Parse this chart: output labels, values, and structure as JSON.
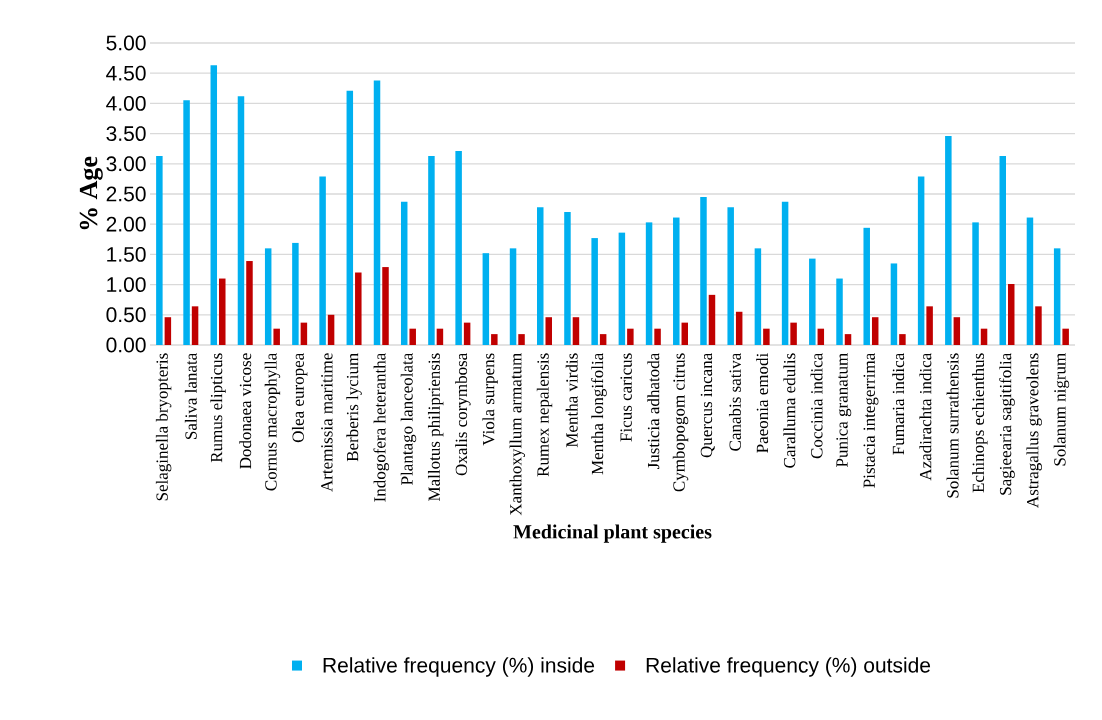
{
  "chart_data": {
    "type": "bar",
    "xlabel": "Medicinal plant species",
    "ylabel": "% Age",
    "categories": [
      "Selaginella bryopteris",
      "Saliva lanata",
      "Rumus elipticus",
      "Dodonaea vicose",
      "Cornus macrophylla",
      "Olea europea",
      "Artemissia maritime",
      "Berberis lycium",
      "Indogofera heterantha",
      "Plantago lanceolata",
      "Mallotus philipriensis",
      "Oxalis corymbosa",
      "Viola surpens",
      "Xanthoxyllum armatum",
      "Rumex nepalensis",
      "Mentha virdis",
      "Mentha longifolia",
      "Ficus caricus",
      "Justicia adhatoda",
      "Cymbopogom citrus",
      "Quercus incana",
      "Canabis sativa",
      "Paeonia emodi",
      "Caralluma edulis",
      "Coccinia indica",
      "Punica granatum",
      "Pistacia integerrima",
      "Fumaria indica",
      "Azadirachta indica",
      "Solanum surrathensis",
      "Echinops echienthus",
      "Sagieearia sagitifolia",
      "Astragallus graveolens",
      "Solanum nigrum"
    ],
    "series": [
      {
        "name": "Relative frequency (%) inside",
        "color": "#00b0f0",
        "values": [
          3.13,
          4.05,
          4.63,
          4.12,
          1.6,
          1.69,
          2.79,
          4.21,
          4.38,
          2.37,
          3.13,
          3.21,
          1.52,
          1.6,
          2.28,
          2.2,
          1.77,
          1.86,
          2.03,
          2.11,
          2.45,
          2.28,
          1.6,
          2.37,
          1.43,
          1.1,
          1.94,
          1.35,
          2.79,
          3.46,
          2.03,
          3.13,
          2.11,
          1.6
        ]
      },
      {
        "name": "Relative frequency (%) outside",
        "color": "#c00000",
        "values": [
          0.46,
          0.64,
          1.1,
          1.39,
          0.27,
          0.37,
          0.5,
          1.2,
          1.29,
          0.27,
          0.27,
          0.37,
          0.18,
          0.18,
          0.46,
          0.46,
          0.18,
          0.27,
          0.27,
          0.37,
          0.83,
          0.55,
          0.27,
          0.37,
          0.27,
          0.18,
          0.46,
          0.18,
          0.64,
          0.46,
          0.27,
          1.01,
          0.64,
          0.27
        ]
      }
    ],
    "ylim": [
      0,
      5
    ],
    "yticks": [
      {
        "value": 0,
        "label": "0.00"
      },
      {
        "value": 0.5,
        "label": "0.50"
      },
      {
        "value": 1,
        "label": "1.00"
      },
      {
        "value": 1.5,
        "label": "1.50"
      },
      {
        "value": 2,
        "label": "2.00"
      },
      {
        "value": 2.5,
        "label": "2.50"
      },
      {
        "value": 3,
        "label": "3.00"
      },
      {
        "value": 3.5,
        "label": "3.50"
      },
      {
        "value": 4,
        "label": "4.00"
      },
      {
        "value": 4.5,
        "label": "4.50"
      },
      {
        "value": 5,
        "label": "5.00"
      }
    ],
    "grid": "y",
    "legend": "bottom"
  }
}
